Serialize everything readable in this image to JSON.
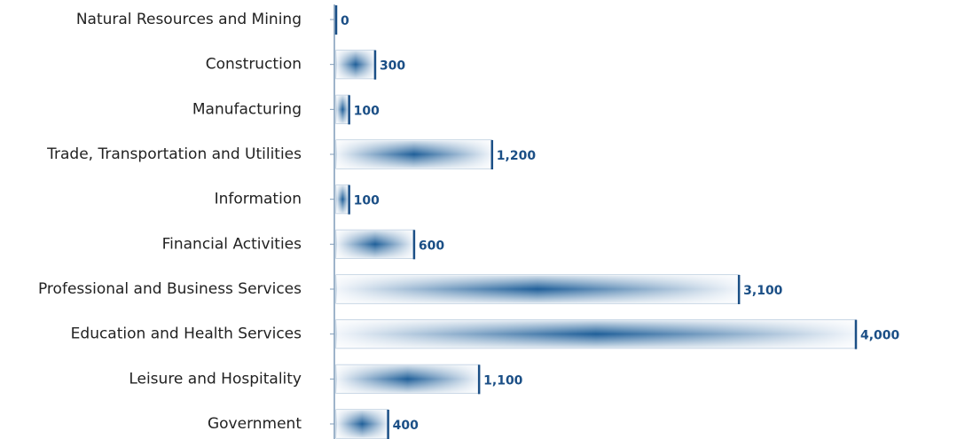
{
  "chart_data": {
    "type": "bar",
    "orientation": "horizontal",
    "categories": [
      "Natural Resources and Mining",
      "Construction",
      "Manufacturing",
      "Trade, Transportation and Utilities",
      "Information",
      "Financial Activities",
      "Professional and Business Services",
      "Education and Health Services",
      "Leisure and Hospitality",
      "Government"
    ],
    "values": [
      0,
      300,
      100,
      1200,
      100,
      600,
      3100,
      4000,
      1100,
      400
    ],
    "value_labels": [
      "0",
      "300",
      "100",
      "1,200",
      "100",
      "600",
      "3,100",
      "4,000",
      "1,100",
      "400"
    ],
    "color": "#1f5f99",
    "xlim": [
      0,
      4000
    ]
  }
}
